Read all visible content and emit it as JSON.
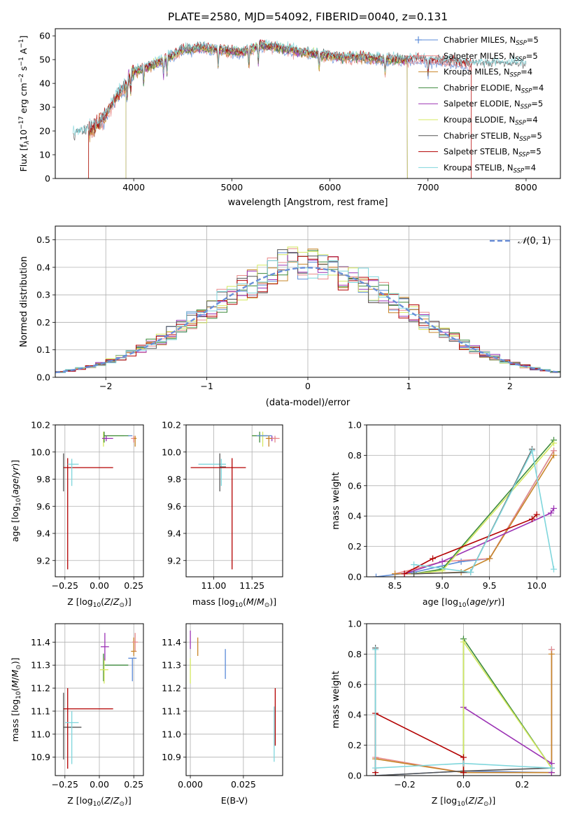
{
  "figure": {
    "title": "PLATE=2580, MJD=54092, FIBERID=0040, z=0.131"
  },
  "colors": {
    "chabrier_miles": "#5b8bd8",
    "salpeter_miles": "#e88a8a",
    "kroupa_miles": "#c8862a",
    "chabrier_elodie": "#3c8a3c",
    "salpeter_elodie": "#9b32b4",
    "kroupa_elodie": "#d4e860",
    "chabrier_stelib": "#555555",
    "salpeter_stelib": "#b30000",
    "kroupa_stelib": "#7fd6dc",
    "normal": "#6a8fd8",
    "grid": "#b0b0b0"
  },
  "chart_data": [
    {
      "id": "spectrum",
      "type": "line",
      "xlabel": "wavelength [Angstrom, rest frame]",
      "ylabel": "Flux [f",
      "ylabel_parts": [
        "Flux [f",
        "λ",
        "10",
        "−17",
        " erg cm",
        "−2",
        " s",
        "−1",
        " A",
        "−1",
        "]"
      ],
      "xlim": [
        3200,
        8350
      ],
      "ylim": [
        0,
        63
      ],
      "xticks": [
        4000,
        5000,
        6000,
        7000,
        8000
      ],
      "yticks": [
        0,
        10,
        20,
        30,
        40,
        50,
        60
      ],
      "grid": false,
      "legend": "top-right",
      "series": [
        {
          "key": "chabrier_miles",
          "label_main": "Chabrier MILES, N",
          "label_sub": "SSP",
          "label_end": "=5",
          "marker": "+"
        },
        {
          "key": "salpeter_miles",
          "label_main": "Salpeter MILES, N",
          "label_sub": "SSP",
          "label_end": "=5",
          "marker": "+"
        },
        {
          "key": "kroupa_miles",
          "label_main": "Kroupa MILES, N",
          "label_sub": "SSP",
          "label_end": "=4",
          "marker": ""
        },
        {
          "key": "chabrier_elodie",
          "label_main": "Chabrier ELODIE, N",
          "label_sub": "SSP",
          "label_end": "=4",
          "marker": ""
        },
        {
          "key": "salpeter_elodie",
          "label_main": "Salpeter ELODIE, N",
          "label_sub": "SSP",
          "label_end": "=5",
          "marker": ""
        },
        {
          "key": "kroupa_elodie",
          "label_main": "Kroupa ELODIE, N",
          "label_sub": "SSP",
          "label_end": "=4",
          "marker": ""
        },
        {
          "key": "chabrier_stelib",
          "label_main": "Chabrier STELIB, N",
          "label_sub": "SSP",
          "label_end": "=5",
          "marker": ""
        },
        {
          "key": "salpeter_stelib",
          "label_main": "Salpeter STELIB, N",
          "label_sub": "SSP",
          "label_end": "=5",
          "marker": ""
        },
        {
          "key": "kroupa_stelib",
          "label_main": "Kroupa STELIB, N",
          "label_sub": "SSP",
          "label_end": "=4",
          "marker": ""
        }
      ],
      "continuum": {
        "x": [
          3380,
          3550,
          3700,
          3800,
          3900,
          3950,
          4000,
          4150,
          4300,
          4500,
          4700,
          4900,
          5100,
          5300,
          5600,
          5900,
          6100,
          6300,
          6600,
          6900,
          7200,
          7450
        ],
        "y": [
          18,
          20,
          25,
          33,
          38,
          42,
          45,
          47,
          50,
          54,
          55,
          54,
          53,
          56,
          54,
          52,
          51,
          51,
          50,
          50,
          49,
          48
        ]
      },
      "dips": [
        {
          "x": 3550,
          "y": 0
        },
        {
          "x": 3920,
          "y": 0
        },
        {
          "x": 6790,
          "y": 0
        },
        {
          "x": 7440,
          "y": 0
        }
      ]
    },
    {
      "id": "residuals",
      "type": "histogram",
      "xlabel": "(data-model)/error",
      "ylabel": "Normed distribution",
      "xlim": [
        -2.5,
        2.5
      ],
      "ylim": [
        0,
        0.55
      ],
      "xticks": [
        -2,
        -1,
        0,
        1,
        2
      ],
      "yticks": [
        0.0,
        0.1,
        0.2,
        0.3,
        0.4,
        0.5
      ],
      "grid": true,
      "legend": "top-right",
      "normal_label_script": "𝒩",
      "normal_label_args": "(0, 1)",
      "bin_width": 0.1
    },
    {
      "id": "age_vs_Z",
      "type": "errorbar",
      "xlabel": "Z [log",
      "ylabel": "age  [log",
      "xlim": [
        -0.32,
        0.32
      ],
      "ylim": [
        9.08,
        10.2
      ],
      "xticks": [
        -0.25,
        0.0,
        0.25
      ],
      "yticks": [
        9.2,
        9.4,
        9.6,
        9.8,
        10.0,
        10.2
      ],
      "grid": true,
      "points": [
        {
          "key": "chabrier_stelib",
          "x": -0.26,
          "y": 9.89,
          "xe": [
            0.0,
            0.0
          ],
          "ye": [
            0.18,
            0.1
          ]
        },
        {
          "key": "salpeter_stelib",
          "x": -0.23,
          "y": 9.885,
          "xe": [
            0.03,
            0.33
          ],
          "ye": [
            0.75,
            0.07
          ]
        },
        {
          "key": "kroupa_stelib",
          "x": -0.2,
          "y": 9.91,
          "xe": [
            0.03,
            0.05
          ],
          "ye": [
            0.16,
            0.04
          ]
        },
        {
          "key": "kroupa_elodie",
          "x": 0.03,
          "y": 10.12,
          "xe": [
            0.0,
            0.15
          ],
          "ye": [
            0.08,
            0.03
          ]
        },
        {
          "key": "chabrier_elodie",
          "x": 0.035,
          "y": 10.12,
          "xe": [
            0.0,
            0.18
          ],
          "ye": [
            0.05,
            0.03
          ]
        },
        {
          "key": "salpeter_elodie",
          "x": 0.05,
          "y": 10.1,
          "xe": [
            0.03,
            0.05
          ],
          "ye": [
            0.02,
            0.02
          ]
        },
        {
          "key": "chabrier_miles",
          "x": 0.21,
          "y": 10.12,
          "xe": [
            0.0,
            0.03
          ],
          "ye": [
            0.0,
            0.0
          ]
        },
        {
          "key": "salpeter_miles",
          "x": 0.25,
          "y": 10.1,
          "xe": [
            0.02,
            0.02
          ],
          "ye": [
            0.03,
            0.02
          ]
        },
        {
          "key": "kroupa_miles",
          "x": 0.26,
          "y": 10.1,
          "xe": [
            0.01,
            0.01
          ],
          "ye": [
            0.06,
            0.02
          ]
        }
      ]
    },
    {
      "id": "age_vs_mass",
      "type": "errorbar",
      "xlabel": "mass [log",
      "xlim": [
        10.82,
        11.45
      ],
      "ylim": [
        9.08,
        10.2
      ],
      "xticks": [
        11.0,
        11.25
      ],
      "yticks": [
        9.2,
        9.4,
        9.6,
        9.8,
        10.0,
        10.2
      ],
      "grid": true,
      "points": [
        {
          "key": "kroupa_stelib",
          "x": 11.05,
          "y": 9.91,
          "xe": [
            0.15,
            0.03
          ],
          "ye": [
            0.16,
            0.04
          ]
        },
        {
          "key": "chabrier_stelib",
          "x": 11.04,
          "y": 9.89,
          "xe": [
            0.0,
            0.04
          ],
          "ye": [
            0.18,
            0.1
          ]
        },
        {
          "key": "salpeter_stelib",
          "x": 11.12,
          "y": 9.885,
          "xe": [
            0.27,
            0.09
          ],
          "ye": [
            0.75,
            0.07
          ]
        },
        {
          "key": "kroupa_elodie",
          "x": 11.32,
          "y": 10.12,
          "xe": [
            0.07,
            0.05
          ],
          "ye": [
            0.08,
            0.03
          ]
        },
        {
          "key": "chabrier_elodie",
          "x": 11.3,
          "y": 10.12,
          "xe": [
            0.05,
            0.05
          ],
          "ye": [
            0.05,
            0.03
          ]
        },
        {
          "key": "salpeter_elodie",
          "x": 11.38,
          "y": 10.1,
          "xe": [
            0.03,
            0.03
          ],
          "ye": [
            0.02,
            0.02
          ]
        },
        {
          "key": "chabrier_miles",
          "x": 11.33,
          "y": 10.12,
          "xe": [
            0.05,
            0.05
          ],
          "ye": [
            0.0,
            0.0
          ]
        },
        {
          "key": "salpeter_miles",
          "x": 11.4,
          "y": 10.1,
          "xe": [
            0.02,
            0.03
          ],
          "ye": [
            0.03,
            0.02
          ]
        },
        {
          "key": "kroupa_miles",
          "x": 11.36,
          "y": 10.1,
          "xe": [
            0.02,
            0.02
          ],
          "ye": [
            0.06,
            0.02
          ]
        }
      ]
    },
    {
      "id": "massweight_vs_age",
      "type": "line",
      "xlabel": "age  [log",
      "ylabel": "mass weight",
      "xlim": [
        8.2,
        10.25
      ],
      "ylim": [
        0,
        1.0
      ],
      "xticks": [
        8.5,
        9.0,
        9.5,
        10.0
      ],
      "yticks": [
        0.0,
        0.2,
        0.4,
        0.6,
        0.8,
        1.0
      ],
      "grid": true,
      "series": [
        {
          "key": "chabrier_miles",
          "x": [
            8.3,
            8.7,
            9.2,
            9.5,
            10.18
          ],
          "y": [
            0.0,
            0.03,
            0.1,
            0.12,
            0.83
          ]
        },
        {
          "key": "salpeter_miles",
          "x": [
            8.5,
            8.7,
            9.0,
            9.5,
            10.18
          ],
          "y": [
            0.02,
            0.05,
            0.1,
            0.12,
            0.83
          ]
        },
        {
          "key": "kroupa_miles",
          "x": [
            8.5,
            8.7,
            9.2,
            9.5,
            10.18
          ],
          "y": [
            0.02,
            0.02,
            0.03,
            0.12,
            0.8
          ]
        },
        {
          "key": "chabrier_elodie",
          "x": [
            8.7,
            9.0,
            10.18
          ],
          "y": [
            0.02,
            0.05,
            0.9
          ]
        },
        {
          "key": "salpeter_elodie",
          "x": [
            8.6,
            9.0,
            10.15,
            10.18
          ],
          "y": [
            0.02,
            0.1,
            0.42,
            0.45
          ]
        },
        {
          "key": "kroupa_elodie",
          "x": [
            8.7,
            9.0,
            10.18
          ],
          "y": [
            0.02,
            0.04,
            0.88
          ]
        },
        {
          "key": "chabrier_stelib",
          "x": [
            8.7,
            9.3,
            9.95
          ],
          "y": [
            0.02,
            0.03,
            0.84
          ]
        },
        {
          "key": "salpeter_stelib",
          "x": [
            8.6,
            8.9,
            9.95,
            10.0
          ],
          "y": [
            0.02,
            0.12,
            0.38,
            0.41
          ]
        },
        {
          "key": "kroupa_stelib",
          "x": [
            8.7,
            9.3,
            9.95,
            10.18
          ],
          "y": [
            0.08,
            0.03,
            0.83,
            0.05
          ]
        }
      ]
    },
    {
      "id": "mass_vs_Z",
      "type": "errorbar",
      "xlabel": "Z [log",
      "ylabel": "mass [log",
      "xlim": [
        -0.32,
        0.32
      ],
      "ylim": [
        10.82,
        11.48
      ],
      "xticks": [
        -0.25,
        0.0,
        0.25
      ],
      "yticks": [
        10.9,
        11.0,
        11.1,
        11.2,
        11.3,
        11.4
      ],
      "grid": true,
      "points": [
        {
          "key": "chabrier_stelib",
          "x": -0.26,
          "y": 11.03,
          "xe": [
            0.0,
            0.13
          ],
          "ye": [
            0.14,
            0.15
          ]
        },
        {
          "key": "salpeter_stelib",
          "x": -0.23,
          "y": 11.11,
          "xe": [
            0.03,
            0.33
          ],
          "ye": [
            0.26,
            0.09
          ]
        },
        {
          "key": "kroupa_stelib",
          "x": -0.2,
          "y": 11.05,
          "xe": [
            0.05,
            0.05
          ],
          "ye": [
            0.18,
            0.05
          ]
        },
        {
          "key": "chabrier_elodie",
          "x": 0.03,
          "y": 11.3,
          "xe": [
            0.0,
            0.18
          ],
          "ye": [
            0.07,
            0.05
          ]
        },
        {
          "key": "kroupa_elodie",
          "x": 0.035,
          "y": 11.28,
          "xe": [
            0.03,
            0.03
          ],
          "ye": [
            0.06,
            0.05
          ]
        },
        {
          "key": "salpeter_elodie",
          "x": 0.04,
          "y": 11.38,
          "xe": [
            0.03,
            0.03
          ],
          "ye": [
            0.06,
            0.06
          ]
        },
        {
          "key": "chabrier_miles",
          "x": 0.24,
          "y": 11.33,
          "xe": [
            0.03,
            0.03
          ],
          "ye": [
            0.1,
            0.0
          ]
        },
        {
          "key": "kroupa_miles",
          "x": 0.25,
          "y": 11.36,
          "xe": [
            0.02,
            0.02
          ],
          "ye": [
            0.02,
            0.06
          ]
        },
        {
          "key": "salpeter_miles",
          "x": 0.26,
          "y": 11.4,
          "xe": [
            0.02,
            0.02
          ],
          "ye": [
            0.04,
            0.04
          ]
        }
      ]
    },
    {
      "id": "mass_vs_ebv",
      "type": "errorbar",
      "xlabel": "E(B-V)",
      "xlim": [
        -0.002,
        0.0435
      ],
      "ylim": [
        10.82,
        11.48
      ],
      "xticks": [
        0.0,
        0.025
      ],
      "yticks": [
        10.9,
        11.0,
        11.1,
        11.2,
        11.3,
        11.4
      ],
      "grid": true,
      "points": [
        {
          "key": "salpeter_elodie",
          "x": 0.0,
          "y": 11.41,
          "xe": [
            0,
            0
          ],
          "ye": [
            0.04,
            0.04
          ]
        },
        {
          "key": "kroupa_elodie",
          "x": 0.0,
          "y": 11.28,
          "xe": [
            0,
            0
          ],
          "ye": [
            0.06,
            0.05
          ]
        },
        {
          "key": "kroupa_miles",
          "x": 0.0035,
          "y": 11.38,
          "xe": [
            0,
            0
          ],
          "ye": [
            0.04,
            0.04
          ]
        },
        {
          "key": "chabrier_miles",
          "x": 0.0165,
          "y": 11.3,
          "xe": [
            0,
            0
          ],
          "ye": [
            0.06,
            0.07
          ]
        },
        {
          "key": "salpeter_stelib",
          "x": 0.04,
          "y": 11.1,
          "xe": [
            0,
            0
          ],
          "ye": [
            0.15,
            0.1
          ]
        },
        {
          "key": "kroupa_stelib",
          "x": 0.0395,
          "y": 11.0,
          "xe": [
            0,
            0
          ],
          "ye": [
            0.12,
            0.12
          ]
        }
      ]
    },
    {
      "id": "massweight_vs_Z",
      "type": "line",
      "xlabel": "Z [log",
      "ylabel": "mass weight",
      "xlim": [
        -0.33,
        0.33
      ],
      "ylim": [
        0,
        1.0
      ],
      "xticks": [
        -0.2,
        0.0,
        0.2
      ],
      "yticks": [
        0.0,
        0.2,
        0.4,
        0.6,
        0.8,
        1.0
      ],
      "grid": true,
      "series": [
        {
          "key": "chabrier_miles",
          "x": [
            -0.3,
            0.0,
            0.3,
            0.3
          ],
          "y": [
            0.0,
            0.03,
            0.02,
            0.83
          ]
        },
        {
          "key": "salpeter_miles",
          "x": [
            -0.3,
            0.0,
            0.3,
            0.3
          ],
          "y": [
            0.12,
            0.02,
            0.02,
            0.83
          ]
        },
        {
          "key": "kroupa_miles",
          "x": [
            -0.3,
            0.0,
            0.3,
            0.3
          ],
          "y": [
            0.11,
            0.02,
            0.02,
            0.8
          ]
        },
        {
          "key": "chabrier_elodie",
          "x": [
            0.0,
            0.0,
            0.3
          ],
          "y": [
            0.02,
            0.9,
            0.05
          ]
        },
        {
          "key": "salpeter_elodie",
          "x": [
            0.0,
            0.3,
            0.3
          ],
          "y": [
            0.45,
            0.08,
            0.02
          ]
        },
        {
          "key": "kroupa_elodie",
          "x": [
            0.0,
            0.0,
            0.3
          ],
          "y": [
            0.03,
            0.88,
            0.05
          ]
        },
        {
          "key": "chabrier_stelib",
          "x": [
            -0.3,
            -0.3,
            0.0,
            0.3
          ],
          "y": [
            0.84,
            0.0,
            0.03,
            0.05
          ]
        },
        {
          "key": "salpeter_stelib",
          "x": [
            -0.3,
            -0.3,
            0.0,
            0.0
          ],
          "y": [
            0.02,
            0.41,
            0.12,
            0.02
          ]
        },
        {
          "key": "kroupa_stelib",
          "x": [
            -0.3,
            -0.3,
            0.0,
            0.3
          ],
          "y": [
            0.83,
            0.05,
            0.08,
            0.05
          ]
        }
      ]
    }
  ]
}
